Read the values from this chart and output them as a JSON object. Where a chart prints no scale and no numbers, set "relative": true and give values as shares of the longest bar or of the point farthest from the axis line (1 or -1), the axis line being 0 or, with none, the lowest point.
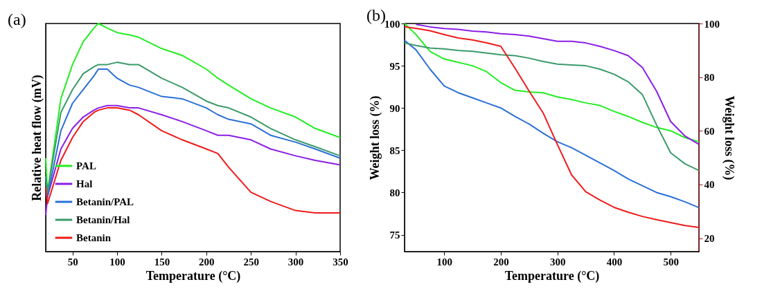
{
  "chart_data": [
    {
      "type": "line",
      "title": "(a)",
      "xlabel": "Temperature (°C)",
      "ylabel": "Relative heat flow (mV)",
      "relative": true,
      "legend": "bottom left",
      "xlim": [
        20,
        350
      ],
      "xticks": [
        50,
        100,
        150,
        200,
        250,
        300,
        350
      ],
      "x": [
        20,
        22,
        37,
        50,
        62,
        74,
        79,
        89,
        100,
        114,
        124,
        150,
        173,
        200,
        213,
        225,
        250,
        272,
        300,
        322,
        350
      ],
      "series": [
        {
          "name": "PAL",
          "color": "#22ee22",
          "values": [
            0.41,
            0.26,
            0.67,
            0.82,
            0.92,
            0.98,
            1.0,
            0.98,
            0.96,
            0.95,
            0.94,
            0.89,
            0.86,
            0.8,
            0.76,
            0.73,
            0.67,
            0.63,
            0.59,
            0.54,
            0.5
          ]
        },
        {
          "name": "Hal",
          "color": "#8a1ee6",
          "values": [
            0.16,
            0.24,
            0.45,
            0.54,
            0.59,
            0.62,
            0.63,
            0.64,
            0.64,
            0.63,
            0.63,
            0.6,
            0.57,
            0.53,
            0.51,
            0.51,
            0.49,
            0.45,
            0.42,
            0.4,
            0.38
          ]
        },
        {
          "name": "Betanin/PAL",
          "color": "#2a6fd6",
          "values": [
            0.33,
            0.24,
            0.53,
            0.65,
            0.71,
            0.77,
            0.8,
            0.8,
            0.76,
            0.73,
            0.72,
            0.68,
            0.67,
            0.63,
            0.6,
            0.58,
            0.56,
            0.51,
            0.48,
            0.45,
            0.41
          ]
        },
        {
          "name": "Betanin/Hal",
          "color": "#3a9a6a",
          "values": [
            0.33,
            0.26,
            0.61,
            0.71,
            0.78,
            0.81,
            0.82,
            0.82,
            0.83,
            0.82,
            0.82,
            0.76,
            0.72,
            0.66,
            0.64,
            0.63,
            0.59,
            0.54,
            0.49,
            0.46,
            0.42
          ]
        },
        {
          "name": "Betanin",
          "color": "#ee1a1a",
          "values": [
            0.28,
            0.21,
            0.4,
            0.5,
            0.57,
            0.61,
            0.62,
            0.63,
            0.63,
            0.62,
            0.6,
            0.53,
            0.49,
            0.45,
            0.43,
            0.37,
            0.26,
            0.22,
            0.18,
            0.17,
            0.17
          ]
        }
      ]
    },
    {
      "type": "line",
      "title": "(b)",
      "xlabel": "Temperature (°C)",
      "ylabel": "Weight loss (%)",
      "y2label": "Weight loss (%)",
      "legend": "bottom left",
      "xlim": [
        30,
        550
      ],
      "xticks": [
        100,
        200,
        300,
        400,
        500
      ],
      "ylim": [
        73,
        100
      ],
      "yticks": [
        75,
        80,
        85,
        90,
        95,
        100
      ],
      "y2lim": [
        15,
        100
      ],
      "y2ticks": [
        20,
        40,
        60,
        80,
        100
      ],
      "x": [
        30,
        50,
        75,
        100,
        125,
        150,
        175,
        200,
        225,
        250,
        275,
        300,
        325,
        350,
        375,
        400,
        425,
        450,
        475,
        500,
        525,
        550
      ],
      "series": [
        {
          "name": "PAL",
          "color": "#22ee22",
          "values": [
            100,
            98.7,
            96.7,
            95.8,
            95.4,
            95.0,
            94.3,
            93.0,
            92.1,
            91.9,
            91.8,
            91.3,
            91.0,
            90.6,
            90.3,
            89.6,
            89.0,
            88.3,
            87.7,
            87.3,
            86.5,
            86.0
          ]
        },
        {
          "name": "Hal",
          "color": "#8a1ee6",
          "values": [
            null,
            99.9,
            99.6,
            99.4,
            99.3,
            99.1,
            99.0,
            98.8,
            98.7,
            98.5,
            98.2,
            97.9,
            97.9,
            97.7,
            97.3,
            96.8,
            96.2,
            94.8,
            92.0,
            88.4,
            86.7,
            85.7
          ]
        },
        {
          "name": "Betanin/PAL",
          "color": "#2a6fd6",
          "values": [
            98.0,
            96.9,
            94.6,
            92.6,
            91.8,
            91.2,
            90.6,
            90.0,
            89.0,
            88.1,
            87.0,
            86.0,
            85.3,
            84.4,
            83.5,
            82.6,
            81.6,
            80.8,
            80.0,
            79.5,
            78.9,
            78.2
          ]
        },
        {
          "name": "Betanin/Hal",
          "color": "#3a9a6a",
          "values": [
            97.7,
            97.4,
            97.1,
            97.0,
            96.8,
            96.7,
            96.5,
            96.3,
            96.2,
            95.9,
            95.5,
            95.2,
            95.1,
            95.0,
            94.6,
            94.0,
            93.1,
            91.6,
            88.0,
            84.7,
            83.4,
            82.6
          ]
        },
        {
          "name": "Betanin",
          "color": "#ee1a1a",
          "axis": "y2",
          "values": [
            98.8,
            98.2,
            97.3,
            95.9,
            94.6,
            93.9,
            92.8,
            91.5,
            83.4,
            74.8,
            66.6,
            54.9,
            43.6,
            37.3,
            34.2,
            31.5,
            29.7,
            28.1,
            26.9,
            25.8,
            24.7,
            24.0
          ]
        }
      ]
    }
  ]
}
